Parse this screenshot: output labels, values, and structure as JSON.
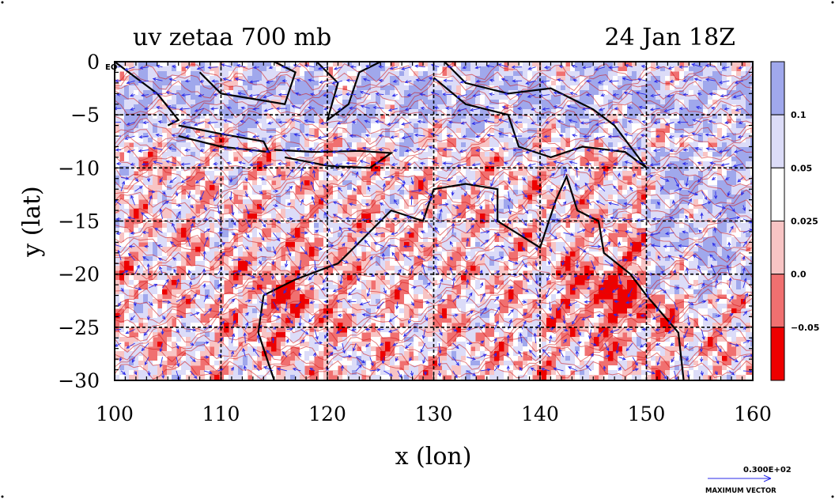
{
  "chart_data": {
    "type": "heatmap",
    "title_left": "uv zetaa 700 mb",
    "title_right": "24 Jan 18Z",
    "xlabel": "x (lon)",
    "ylabel": "y (lat)",
    "xlim": [
      100,
      160
    ],
    "ylim": [
      -30,
      0
    ],
    "x_ticks": [
      {
        "value": 100,
        "label": "100"
      },
      {
        "value": 110,
        "label": "110"
      },
      {
        "value": 120,
        "label": "120"
      },
      {
        "value": 130,
        "label": "130"
      },
      {
        "value": 140,
        "label": "140"
      },
      {
        "value": 150,
        "label": "150"
      },
      {
        "value": 160,
        "label": "160"
      }
    ],
    "y_ticks": [
      {
        "value": 0,
        "label": "0"
      },
      {
        "value": -5,
        "label": "−5"
      },
      {
        "value": -10,
        "label": "−10"
      },
      {
        "value": -15,
        "label": "−15"
      },
      {
        "value": -20,
        "label": "−20"
      },
      {
        "value": -25,
        "label": "−25"
      },
      {
        "value": -30,
        "label": "−30"
      }
    ],
    "eq_label": "EQ",
    "grid": true,
    "colorbar": {
      "placement": "right",
      "levels": [
        {
          "label": "0.1",
          "value": 0.1
        },
        {
          "label": "0.05",
          "value": 0.05
        },
        {
          "label": "0.025",
          "value": 0.025
        },
        {
          "label": "0.0",
          "value": 0.0
        },
        {
          "label": "−0.05",
          "value": -0.05
        }
      ],
      "colors": [
        "#ee0000",
        "#f07070",
        "#f8c4c4",
        "#ffffff",
        "#dcdcf8",
        "#a0a8ec"
      ]
    },
    "vector_key": {
      "value_label": "0.300E+02",
      "caption": "MAXIMUM VECTOR"
    },
    "colors": {
      "strong_positive": "#ee0000",
      "positive": "#f07070",
      "weak_positive": "#f8c4c4",
      "neutral": "#ffffff",
      "weak_negative": "#dcdcf8",
      "negative": "#a0a8ec",
      "vectors": "#2a2ae8",
      "contour": "#d01010",
      "coast": "#000000"
    }
  }
}
